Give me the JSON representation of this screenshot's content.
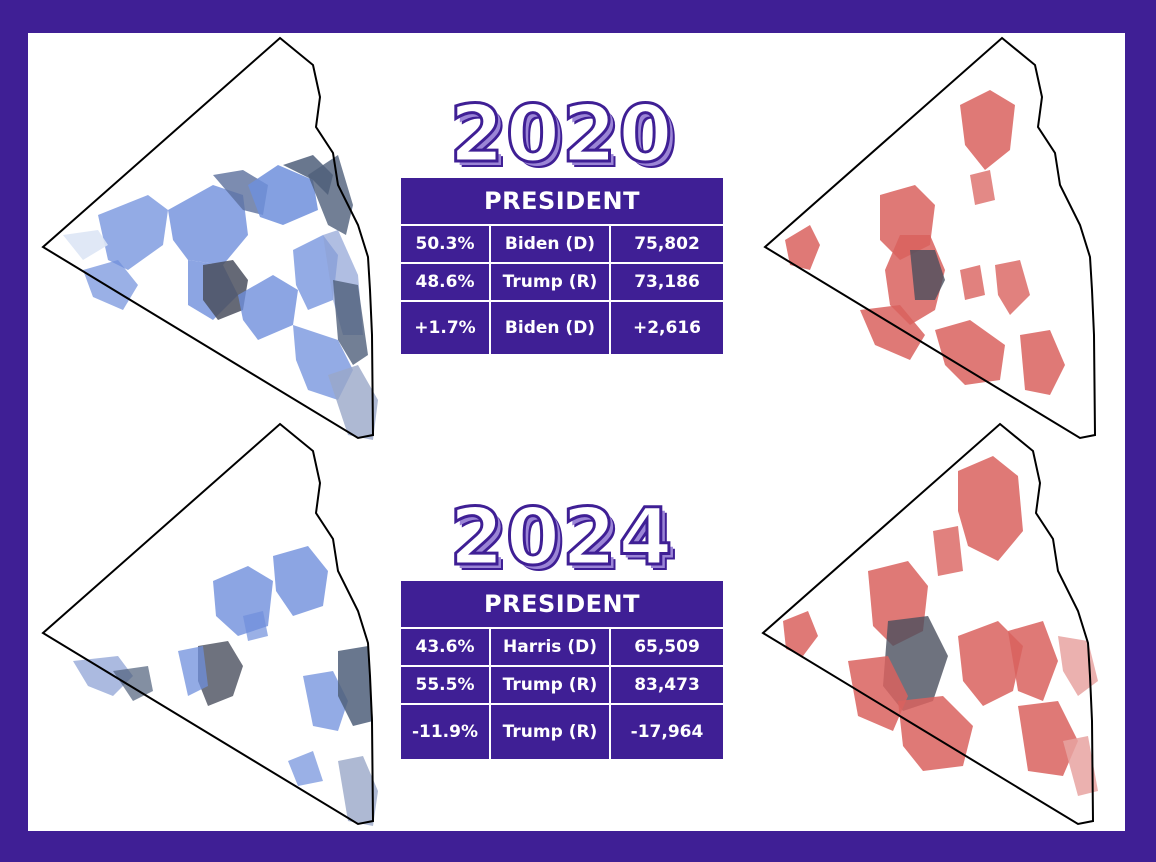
{
  "colors": {
    "frame": "#3f1f95",
    "democrat_precincts": "#6f8fdc",
    "republican_precincts": "#d9625e",
    "county_outline": "#000000"
  },
  "sections": [
    {
      "year": "2020",
      "office": "PRESIDENT",
      "rows": [
        {
          "pct": "50.3%",
          "candidate": "Biden (D)",
          "votes": "75,802"
        },
        {
          "pct": "48.6%",
          "candidate": "Trump (R)",
          "votes": "73,186"
        },
        {
          "pct": "+1.7%",
          "candidate": "Biden (D)",
          "votes": "+2,616"
        }
      ]
    },
    {
      "year": "2024",
      "office": "PRESIDENT",
      "rows": [
        {
          "pct": "43.6%",
          "candidate": "Harris (D)",
          "votes": "65,509"
        },
        {
          "pct": "55.5%",
          "candidate": "Trump (R)",
          "votes": "83,473"
        },
        {
          "pct": "-11.9%",
          "candidate": "Trump (R)",
          "votes": "-17,964"
        }
      ]
    }
  ]
}
